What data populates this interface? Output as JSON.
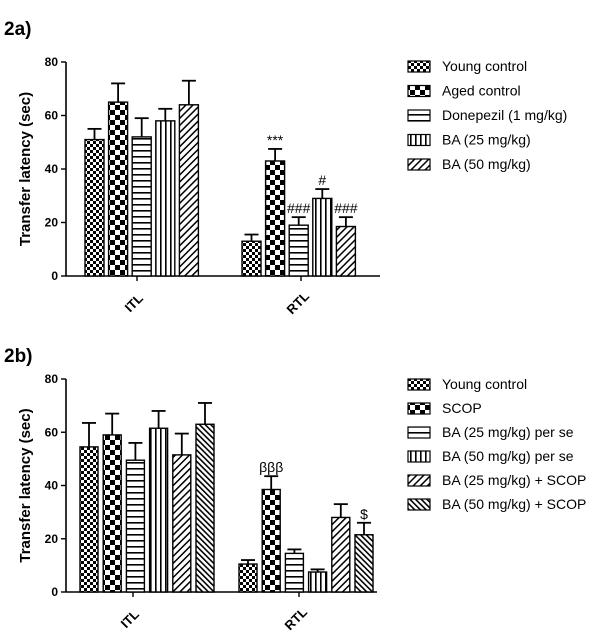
{
  "chart_data": [
    {
      "panel_label": "2a)",
      "type": "bar",
      "ylabel": "Transfer latency (sec)",
      "ylim": [
        0,
        80
      ],
      "yticks": [
        "0",
        "20",
        "40",
        "60",
        "80"
      ],
      "categories": [
        "ITL",
        "RTL"
      ],
      "legend_position": "right",
      "series": [
        {
          "name": "Young control",
          "pattern": "checker-small",
          "values": [
            51,
            13
          ],
          "errors": [
            4,
            2.5
          ],
          "annotations": [
            "",
            ""
          ]
        },
        {
          "name": "Aged control",
          "pattern": "checker-large",
          "values": [
            65,
            43
          ],
          "errors": [
            7,
            4.5
          ],
          "annotations": [
            "",
            "***"
          ]
        },
        {
          "name": "Donepezil (1 mg/kg)",
          "pattern": "hlines",
          "values": [
            52,
            19
          ],
          "errors": [
            7,
            3
          ],
          "annotations": [
            "",
            "###"
          ]
        },
        {
          "name": "BA (25 mg/kg)",
          "pattern": "vlines",
          "values": [
            58,
            29
          ],
          "errors": [
            4.5,
            3.5
          ],
          "annotations": [
            "",
            "#"
          ]
        },
        {
          "name": "BA (50 mg/kg)",
          "pattern": "diag",
          "values": [
            64,
            18.5
          ],
          "errors": [
            9,
            3.5
          ],
          "annotations": [
            "",
            "###"
          ]
        }
      ]
    },
    {
      "panel_label": "2b)",
      "type": "bar",
      "ylabel": "Transfer latency (sec)",
      "ylim": [
        0,
        80
      ],
      "yticks": [
        "0",
        "20",
        "40",
        "60",
        "80"
      ],
      "categories": [
        "ITL",
        "RTL"
      ],
      "legend_position": "right",
      "series": [
        {
          "name": "Young control",
          "pattern": "checker-small",
          "values": [
            54.5,
            10.5
          ],
          "errors": [
            9,
            1.5
          ],
          "annotations": [
            "",
            ""
          ]
        },
        {
          "name": "SCOP",
          "pattern": "checker-large",
          "values": [
            59,
            38.5
          ],
          "errors": [
            8,
            5
          ],
          "annotations": [
            "",
            "βββ"
          ]
        },
        {
          "name": "BA (25 mg/kg) per se",
          "pattern": "hlines",
          "values": [
            49.5,
            14.5
          ],
          "errors": [
            6.5,
            1.5
          ],
          "annotations": [
            "",
            ""
          ]
        },
        {
          "name": "BA (50 mg/kg) per se",
          "pattern": "vlines",
          "values": [
            61.5,
            7.5
          ],
          "errors": [
            6.5,
            1
          ],
          "annotations": [
            "",
            ""
          ]
        },
        {
          "name": "BA (25 mg/kg) + SCOP",
          "pattern": "diag",
          "values": [
            51.5,
            28
          ],
          "errors": [
            8,
            5
          ],
          "annotations": [
            "",
            ""
          ]
        },
        {
          "name": "BA (50 mg/kg) + SCOP",
          "pattern": "diag2",
          "values": [
            63,
            21.5
          ],
          "errors": [
            8,
            4.5
          ],
          "annotations": [
            "",
            "$"
          ]
        }
      ]
    }
  ]
}
